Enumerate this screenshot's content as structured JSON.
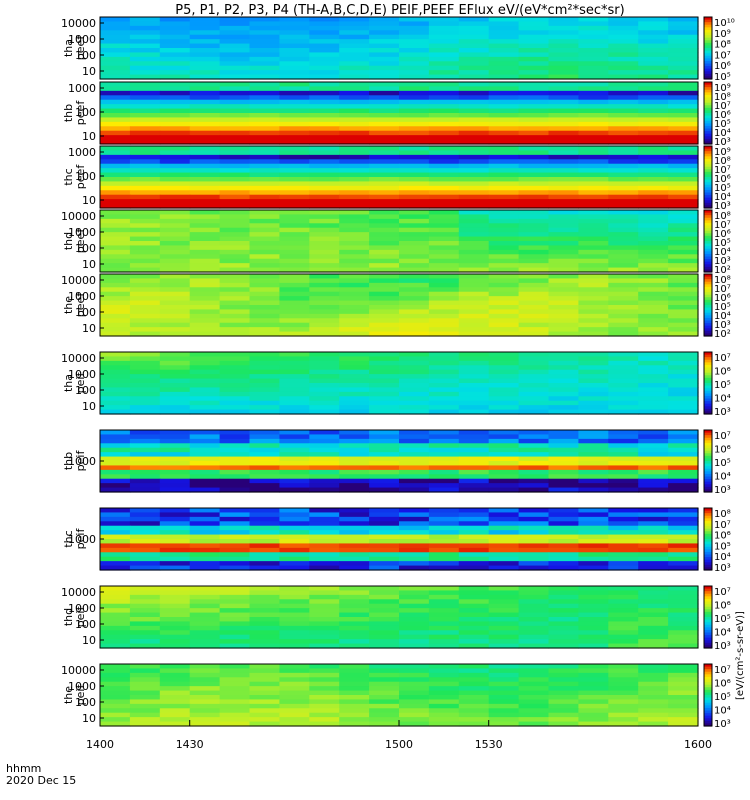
{
  "chart_data": {
    "type": "heatmap",
    "title": "P5, P1, P2, P3, P4 (TH-A,B,C,D,E) PEIF,PEEF EFlux eV/(eV*cm²*sec*sr)",
    "x_label": "hhmm",
    "date_label": "2020 Dec 15",
    "x_range": [
      1400,
      1600
    ],
    "x_ticks": [
      "1400",
      "1430",
      "1500",
      "1530",
      "1600"
    ],
    "colorbar_unit": "[eV/(cm²-s-sr-eV)]",
    "panels": [
      {
        "probe": "tha",
        "product": "peef",
        "yticks": [
          "10000",
          "1000",
          "100",
          "10"
        ],
        "cbticks": [
          "10¹⁰",
          "10⁹",
          "10⁸",
          "10⁷",
          "10⁶",
          "10⁵"
        ],
        "pattern": "tha_peef"
      },
      {
        "probe": "thb",
        "product": "peef",
        "yticks": [
          "1000",
          "100",
          "10"
        ],
        "cbticks": [
          "10⁹",
          "10⁸",
          "10⁷",
          "10⁶",
          "10⁵",
          "10⁴",
          "10³"
        ],
        "pattern": "band_peef"
      },
      {
        "probe": "thc",
        "product": "peef",
        "yticks": [
          "1000",
          "100",
          "10"
        ],
        "cbticks": [
          "10⁹",
          "10⁸",
          "10⁷",
          "10⁶",
          "10⁵",
          "10⁴",
          "10³"
        ],
        "pattern": "band_peef"
      },
      {
        "probe": "thd",
        "product": "peef",
        "yticks": [
          "10000",
          "1000",
          "100",
          "10"
        ],
        "cbticks": [
          "10⁸",
          "10⁷",
          "10⁶",
          "10⁵",
          "10⁴",
          "10³",
          "10²"
        ],
        "pattern": "thd_peef"
      },
      {
        "probe": "the",
        "product": "peef",
        "yticks": [
          "10000",
          "1000",
          "100",
          "10"
        ],
        "cbticks": [
          "10⁸",
          "10⁷",
          "10⁶",
          "10⁵",
          "10⁴",
          "10³",
          "10²"
        ],
        "pattern": "the_peef"
      },
      {
        "probe": "tha",
        "product": "peif",
        "yticks": [
          "10000",
          "1000",
          "100",
          "10"
        ],
        "cbticks": [
          "10⁷",
          "10⁶",
          "10⁵",
          "10⁴",
          "10³"
        ],
        "pattern": "tha_peif"
      },
      {
        "probe": "thb",
        "product": "peif",
        "yticks": [
          "1000"
        ],
        "cbticks": [
          "10⁷",
          "10⁶",
          "10⁵",
          "10⁴",
          "10³"
        ],
        "pattern": "band_peif"
      },
      {
        "probe": "thc",
        "product": "peif",
        "yticks": [
          "1000"
        ],
        "cbticks": [
          "10⁸",
          "10⁷",
          "10⁶",
          "10⁵",
          "10⁴",
          "10³"
        ],
        "pattern": "band_peif2"
      },
      {
        "probe": "thd",
        "product": "peif",
        "yticks": [
          "10000",
          "1000",
          "100",
          "10"
        ],
        "cbticks": [
          "10⁷",
          "10⁶",
          "10⁵",
          "10⁴",
          "10³"
        ],
        "pattern": "thd_peif"
      },
      {
        "probe": "the",
        "product": "peif",
        "yticks": [
          "10000",
          "1000",
          "100",
          "10"
        ],
        "cbticks": [
          "10⁷",
          "10⁶",
          "10⁵",
          "10⁴",
          "10³"
        ],
        "pattern": "the_peif"
      }
    ]
  }
}
